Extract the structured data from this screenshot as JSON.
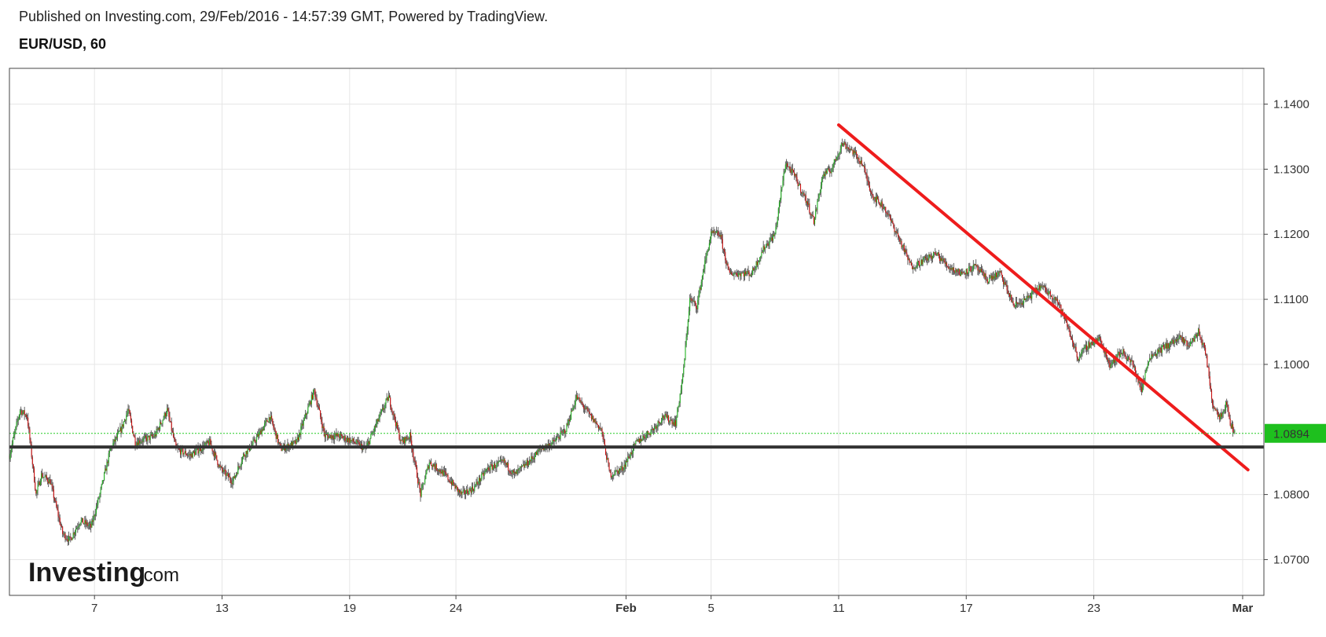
{
  "header": {
    "published": "Published on Investing.com, 29/Feb/2016 - 14:57:39 GMT, Powered by TradingView.",
    "symbol": "EUR/USD, 60"
  },
  "watermark": {
    "brand": "Investing",
    "suffix": ".com"
  },
  "colors": {
    "up": "#22b422",
    "down": "#cc1111",
    "wick": "#555555",
    "trendline": "#ee1c1c",
    "support": "#333333",
    "price_line": "#22cc22",
    "price_badge": "#1ec01e",
    "grid": "#e6e6e6"
  },
  "chart_data": {
    "type": "candlestick",
    "title": "EUR/USD, 60",
    "xlabel": "",
    "ylabel": "",
    "grid": true,
    "ylim": [
      1.0645,
      1.1455
    ],
    "y_ticks": [
      "1.0700",
      "1.0800",
      "1.1000",
      "1.1100",
      "1.1200",
      "1.1300",
      "1.1400"
    ],
    "x_ticks": [
      "7",
      "13",
      "19",
      "24",
      "Feb",
      "5",
      "11",
      "17",
      "23",
      "Mar"
    ],
    "x_range": [
      "2016-01-03",
      "2016-03-02"
    ],
    "current_price": "1.0894",
    "series_path": [
      [
        "2016-01-03 00:00",
        1.086
      ],
      [
        "2016-01-03 12:00",
        1.093
      ],
      [
        "2016-01-03 20:00",
        1.092
      ],
      [
        "2016-01-04 06:00",
        1.08
      ],
      [
        "2016-01-04 12:00",
        1.083
      ],
      [
        "2016-01-04 22:00",
        1.082
      ],
      [
        "2016-01-05 12:00",
        1.074
      ],
      [
        "2016-01-05 20:00",
        1.073
      ],
      [
        "2016-01-06 08:00",
        1.076
      ],
      [
        "2016-01-06 20:00",
        1.075
      ],
      [
        "2016-01-07 06:00",
        1.08
      ],
      [
        "2016-01-07 18:00",
        1.087
      ],
      [
        "2016-01-08 06:00",
        1.09
      ],
      [
        "2016-01-08 14:00",
        1.093
      ],
      [
        "2016-01-08 22:00",
        1.088
      ],
      [
        "2016-01-09 20:00",
        1.089
      ],
      [
        "2016-01-10 10:00",
        1.093
      ],
      [
        "2016-01-10 20:00",
        1.087
      ],
      [
        "2016-01-11 12:00",
        1.086
      ],
      [
        "2016-01-12 10:00",
        1.088
      ],
      [
        "2016-01-12 22:00",
        1.084
      ],
      [
        "2016-01-13 12:00",
        1.082
      ],
      [
        "2016-01-14 00:00",
        1.086
      ],
      [
        "2016-01-14 12:00",
        1.088
      ],
      [
        "2016-01-15 06:00",
        1.092
      ],
      [
        "2016-01-15 18:00",
        1.087
      ],
      [
        "2016-01-16 12:00",
        1.088
      ],
      [
        "2016-01-17 08:00",
        1.096
      ],
      [
        "2016-01-17 20:00",
        1.089
      ],
      [
        "2016-01-18 12:00",
        1.089
      ],
      [
        "2016-01-19 06:00",
        1.088
      ],
      [
        "2016-01-19 18:00",
        1.087
      ],
      [
        "2016-01-20 10:00",
        1.092
      ],
      [
        "2016-01-20 20:00",
        1.095
      ],
      [
        "2016-01-21 10:00",
        1.088
      ],
      [
        "2016-01-21 20:00",
        1.089
      ],
      [
        "2016-01-22 08:00",
        1.08
      ],
      [
        "2016-01-22 18:00",
        1.085
      ],
      [
        "2016-01-23 12:00",
        1.083
      ],
      [
        "2016-01-24 06:00",
        1.08
      ],
      [
        "2016-01-24 20:00",
        1.081
      ],
      [
        "2016-01-25 12:00",
        1.084
      ],
      [
        "2016-01-26 06:00",
        1.085
      ],
      [
        "2016-01-26 18:00",
        1.083
      ],
      [
        "2016-01-27 10:00",
        1.085
      ],
      [
        "2016-01-28 00:00",
        1.087
      ],
      [
        "2016-01-28 14:00",
        1.088
      ],
      [
        "2016-01-29 04:00",
        1.09
      ],
      [
        "2016-01-29 16:00",
        1.095
      ],
      [
        "2016-01-30 08:00",
        1.092
      ],
      [
        "2016-01-30 20:00",
        1.09
      ],
      [
        "2016-01-31 06:00",
        1.083
      ],
      [
        "2016-01-31 20:00",
        1.084
      ],
      [
        "2016-02-01 12:00",
        1.088
      ],
      [
        "2016-02-02 06:00",
        1.09
      ],
      [
        "2016-02-02 18:00",
        1.092
      ],
      [
        "2016-02-03 08:00",
        1.091
      ],
      [
        "2016-02-03 16:00",
        1.098
      ],
      [
        "2016-02-04 00:00",
        1.11
      ],
      [
        "2016-02-04 08:00",
        1.109
      ],
      [
        "2016-02-04 16:00",
        1.115
      ],
      [
        "2016-02-05 00:00",
        1.12
      ],
      [
        "2016-02-05 10:00",
        1.12
      ],
      [
        "2016-02-05 20:00",
        1.114
      ],
      [
        "2016-02-06 10:00",
        1.114
      ],
      [
        "2016-02-06 22:00",
        1.114
      ],
      [
        "2016-02-07 12:00",
        1.118
      ],
      [
        "2016-02-08 00:00",
        1.12
      ],
      [
        "2016-02-08 12:00",
        1.131
      ],
      [
        "2016-02-08 22:00",
        1.129
      ],
      [
        "2016-02-09 12:00",
        1.125
      ],
      [
        "2016-02-09 20:00",
        1.122
      ],
      [
        "2016-02-10 06:00",
        1.129
      ],
      [
        "2016-02-10 16:00",
        1.13
      ],
      [
        "2016-02-11 04:00",
        1.134
      ],
      [
        "2016-02-11 14:00",
        1.133
      ],
      [
        "2016-02-12 02:00",
        1.131
      ],
      [
        "2016-02-12 14:00",
        1.126
      ],
      [
        "2016-02-13 04:00",
        1.124
      ],
      [
        "2016-02-13 18:00",
        1.12
      ],
      [
        "2016-02-14 10:00",
        1.115
      ],
      [
        "2016-02-15 00:00",
        1.116
      ],
      [
        "2016-02-15 14:00",
        1.117
      ],
      [
        "2016-02-16 04:00",
        1.115
      ],
      [
        "2016-02-16 18:00",
        1.114
      ],
      [
        "2016-02-17 10:00",
        1.115
      ],
      [
        "2016-02-18 00:00",
        1.113
      ],
      [
        "2016-02-18 14:00",
        1.114
      ],
      [
        "2016-02-19 06:00",
        1.109
      ],
      [
        "2016-02-19 20:00",
        1.11
      ],
      [
        "2016-02-20 12:00",
        1.112
      ],
      [
        "2016-02-21 06:00",
        1.11
      ],
      [
        "2016-02-21 18:00",
        1.106
      ],
      [
        "2016-02-22 06:00",
        1.101
      ],
      [
        "2016-02-22 18:00",
        1.103
      ],
      [
        "2016-02-23 06:00",
        1.104
      ],
      [
        "2016-02-23 18:00",
        1.1
      ],
      [
        "2016-02-24 08:00",
        1.102
      ],
      [
        "2016-02-24 20:00",
        1.1
      ],
      [
        "2016-02-25 06:00",
        1.096
      ],
      [
        "2016-02-25 14:00",
        1.101
      ],
      [
        "2016-02-26 00:00",
        1.102
      ],
      [
        "2016-02-26 12:00",
        1.103
      ],
      [
        "2016-02-27 00:00",
        1.104
      ],
      [
        "2016-02-27 12:00",
        1.103
      ],
      [
        "2016-02-27 22:00",
        1.105
      ],
      [
        "2016-02-28 06:00",
        1.102
      ],
      [
        "2016-02-28 14:00",
        1.094
      ],
      [
        "2016-02-28 22:00",
        1.092
      ],
      [
        "2016-02-29 06:00",
        1.094
      ],
      [
        "2016-02-29 10:00",
        1.091
      ],
      [
        "2016-02-29 15:00",
        1.0894
      ]
    ],
    "annotations": [
      {
        "type": "trendline",
        "from": [
          "2016-02-11 00:00",
          1.1368
        ],
        "to": [
          "2016-03-01 06:00",
          1.0838
        ]
      },
      {
        "type": "horizontal_line",
        "value": 1.0873
      },
      {
        "type": "price_line",
        "value": 1.0894
      }
    ]
  }
}
